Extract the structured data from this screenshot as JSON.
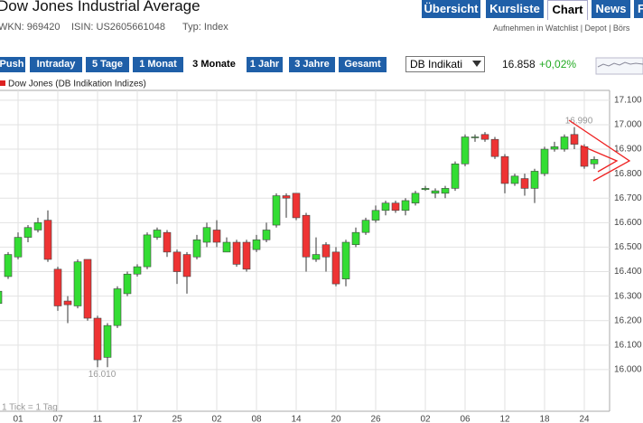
{
  "header": {
    "title": "Dow Jones Industrial Average",
    "tabs": [
      "Übersicht",
      "Kursliste",
      "Chart",
      "News",
      "F"
    ],
    "active_tab": "Chart",
    "wkn": "WKN: 969420",
    "isin": "ISIN: US2605661048",
    "typ": "Typ: Index",
    "links": "Aufnehmen in Watchlist | Depot | Börs"
  },
  "toolbar": {
    "ranges": [
      "Push",
      "Intraday",
      "5 Tage",
      "1 Monat",
      "3 Monate",
      "1 Jahr",
      "3 Jahre",
      "Gesamt"
    ],
    "active_range": "3 Monate",
    "source": "DB Indikati",
    "price": "16.858",
    "change": "+0,02%"
  },
  "chart_data": {
    "type": "candlestick",
    "footnote": "1 Tick = 1 Tag",
    "categories": [
      null,
      null,
      "01",
      null,
      null,
      null,
      "07",
      null,
      null,
      null,
      "11",
      null,
      null,
      null,
      "17",
      null,
      null,
      null,
      "25",
      null,
      null,
      null,
      "02",
      null,
      null,
      null,
      "08",
      null,
      null,
      null,
      "14",
      null,
      null,
      null,
      "20",
      null,
      null,
      null,
      "26",
      null,
      null,
      null,
      null,
      "02",
      null,
      null,
      null,
      "06",
      null,
      null,
      null,
      "12",
      null,
      null,
      null,
      "18",
      null,
      null,
      null,
      "24",
      null
    ],
    "series": [
      {
        "name": "Dow Jones (DB Indikation Indizes)",
        "color": "#dd2222",
        "up_color": "#33dd33",
        "down_color": "#ee3333",
        "open": [
          16270,
          16380,
          16460,
          16540,
          16570,
          16610,
          16410,
          16280,
          16260,
          16450,
          16210,
          16050,
          16180,
          16310,
          16390,
          16420,
          16540,
          16560,
          16480,
          16470,
          16460,
          16520,
          16570,
          16480,
          16520,
          16520,
          16490,
          16530,
          16590,
          16710,
          16720,
          16630,
          16450,
          16510,
          16480,
          16370,
          16510,
          16560,
          16610,
          16650,
          16680,
          16650,
          16680,
          16735,
          16720,
          16720,
          16740,
          16840,
          16950,
          16960,
          16940,
          16870,
          16760,
          16780,
          16740,
          16800,
          16900,
          16900,
          16960,
          16910,
          16840
        ],
        "high": [
          16330,
          16480,
          16560,
          16590,
          16620,
          16650,
          16420,
          16300,
          16450,
          16450,
          16220,
          16190,
          16340,
          16400,
          16430,
          16560,
          16580,
          16570,
          16490,
          16480,
          16550,
          16600,
          16610,
          16540,
          16530,
          16530,
          16550,
          16600,
          16720,
          16720,
          16720,
          16640,
          16540,
          16520,
          16500,
          16530,
          16580,
          16620,
          16670,
          16690,
          16690,
          16700,
          16730,
          16750,
          16740,
          16750,
          16850,
          16960,
          16960,
          16970,
          16950,
          16880,
          16800,
          16800,
          16820,
          16910,
          16930,
          16960,
          16990,
          16920,
          16870
        ],
        "low": [
          16260,
          16370,
          16450,
          16520,
          16560,
          16440,
          16240,
          16190,
          16250,
          16200,
          16010,
          16010,
          16170,
          16300,
          16380,
          16410,
          16530,
          16460,
          16350,
          16310,
          16450,
          16500,
          16500,
          16480,
          16420,
          16400,
          16480,
          16520,
          16580,
          16620,
          16610,
          16400,
          16440,
          16400,
          16340,
          16340,
          16500,
          16550,
          16600,
          16630,
          16640,
          16630,
          16670,
          16730,
          16700,
          16700,
          16730,
          16830,
          16930,
          16930,
          16860,
          16720,
          16750,
          16710,
          16680,
          16790,
          16890,
          16890,
          16900,
          16820,
          16820
        ],
        "close": [
          16320,
          16470,
          16540,
          16580,
          16600,
          16450,
          16260,
          16265,
          16440,
          16210,
          16040,
          16180,
          16330,
          16390,
          16420,
          16550,
          16570,
          16480,
          16400,
          16380,
          16530,
          16580,
          16520,
          16520,
          16430,
          16410,
          16530,
          16570,
          16710,
          16700,
          16620,
          16460,
          16470,
          16460,
          16350,
          16520,
          16560,
          16610,
          16650,
          16680,
          16650,
          16690,
          16720,
          16740,
          16730,
          16740,
          16840,
          16950,
          16950,
          16940,
          16870,
          16760,
          16790,
          16740,
          16810,
          16900,
          16910,
          16950,
          16920,
          16830,
          16858
        ]
      }
    ],
    "annotations": [
      {
        "value": 16990,
        "label": "16.990"
      },
      {
        "value": 16010,
        "label": "16.010"
      }
    ],
    "ylim": [
      15830,
      17140
    ],
    "yticks": [
      {
        "value": 16000,
        "label": "16.000"
      },
      {
        "value": 16100,
        "label": "16.100"
      },
      {
        "value": 16200,
        "label": "16.200"
      },
      {
        "value": 16300,
        "label": "16.300"
      },
      {
        "value": 16400,
        "label": "16.400"
      },
      {
        "value": 16500,
        "label": "16.500"
      },
      {
        "value": 16600,
        "label": "16.600"
      },
      {
        "value": 16700,
        "label": "16.700"
      },
      {
        "value": 16800,
        "label": "16.800"
      },
      {
        "value": 16900,
        "label": "16.900"
      },
      {
        "value": 17000,
        "label": "17.000"
      },
      {
        "value": 17100,
        "label": "17.100"
      }
    ],
    "grid": true
  }
}
